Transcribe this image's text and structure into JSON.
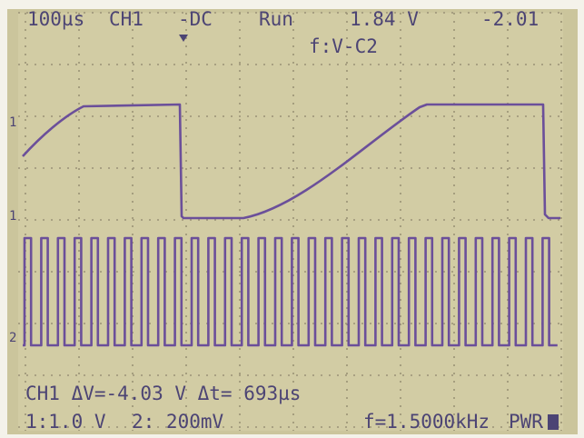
{
  "header": {
    "timebase": "100µs",
    "channel": "CH1",
    "coupling": "-DC",
    "state": "Run",
    "trigger_level": "1.84 V",
    "offset": "-2.01",
    "function": "f:V-C2"
  },
  "markers": {
    "ch1_top": "1",
    "ch1": "1",
    "ch2": "2"
  },
  "footer": {
    "cursor": "CH1 ΔV=-4.03 V Δt= 693µs",
    "ch1_scale": "1:1.0 V",
    "ch2_scale": "2: 200mV",
    "frequency": "f=1.5000kHz",
    "power": "PWR"
  }
}
